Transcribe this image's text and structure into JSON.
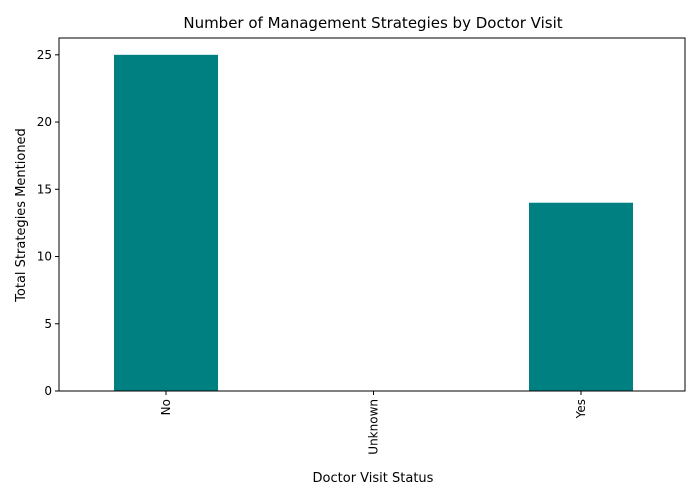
{
  "chart_data": {
    "type": "bar",
    "title": "Number of Management Strategies by Doctor Visit",
    "xlabel": "Doctor Visit Status",
    "ylabel": "Total Strategies Mentioned",
    "categories": [
      "No",
      "Unknown",
      "Yes"
    ],
    "values": [
      25,
      0,
      14
    ],
    "ylim": [
      0,
      26.25
    ],
    "yticks": [
      0,
      5,
      10,
      15,
      20,
      25
    ],
    "bar_color": "#008080",
    "grid": false,
    "legend": "none"
  }
}
